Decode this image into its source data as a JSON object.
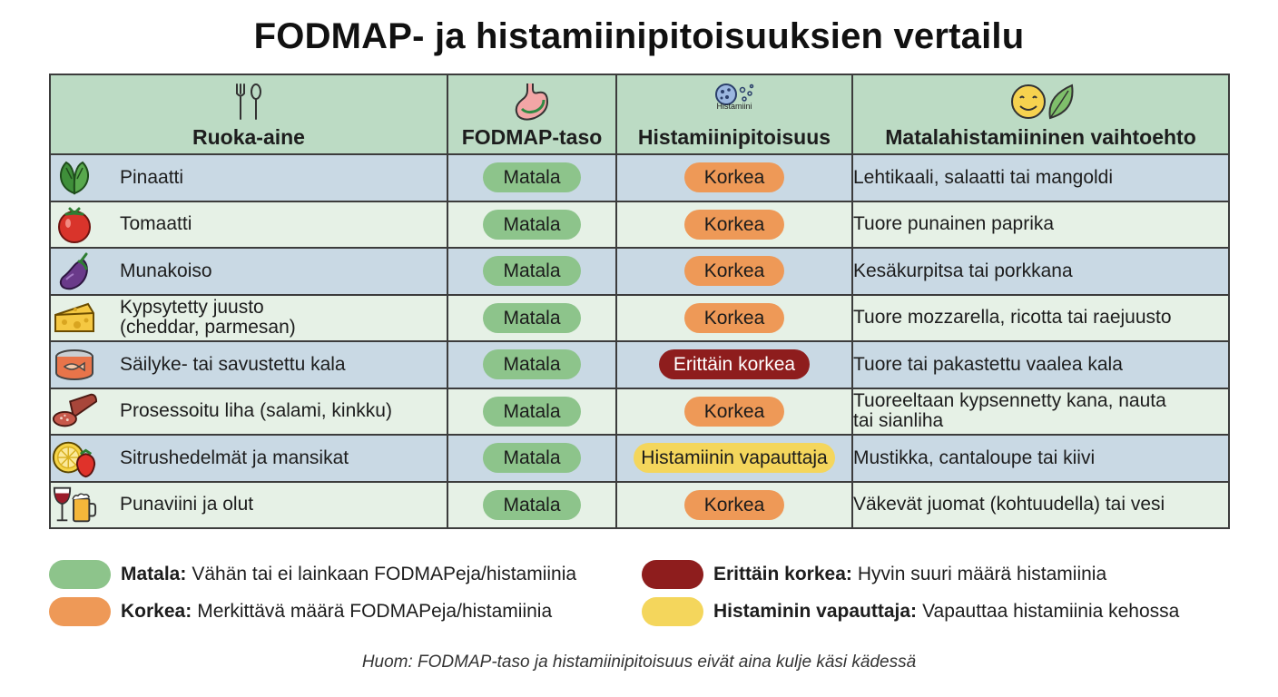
{
  "title": "FODMAP- ja histamiinipitoisuuksien vertailu",
  "headers": {
    "food": "Ruoka-aine",
    "fodmap": "FODMAP-taso",
    "histamine": "Histamiinipitoisuus",
    "histamine_icon_label": "Histamiini",
    "alternative": "Matalahistamiininen vaihtoehto"
  },
  "header_icons": [
    "fork-spoon-icon",
    "stomach-icon",
    "histamine-molecule-icon",
    "smiley-leaf-icon"
  ],
  "rows": [
    {
      "icon": "spinach-icon",
      "food": "Pinaatti",
      "food_line2": "",
      "fodmap": "Matala",
      "histamine": "Korkea",
      "histamine_level": "high",
      "alt": "Lehtikaali, salaatti tai mangoldi",
      "alt_line2": ""
    },
    {
      "icon": "tomato-icon",
      "food": "Tomaatti",
      "food_line2": "",
      "fodmap": "Matala",
      "histamine": "Korkea",
      "histamine_level": "high",
      "alt": "Tuore punainen paprika",
      "alt_line2": ""
    },
    {
      "icon": "eggplant-icon",
      "food": "Munakoiso",
      "food_line2": "",
      "fodmap": "Matala",
      "histamine": "Korkea",
      "histamine_level": "high",
      "alt": "Kesäkurpitsa tai porkkana",
      "alt_line2": ""
    },
    {
      "icon": "cheese-icon",
      "food": "Kypsytetty juusto",
      "food_line2": "(cheddar, parmesan)",
      "fodmap": "Matala",
      "histamine": "Korkea",
      "histamine_level": "high",
      "alt": "Tuore mozzarella, ricotta tai raejuusto",
      "alt_line2": ""
    },
    {
      "icon": "canned-fish-icon",
      "food": "Säilyke- tai savustettu kala",
      "food_line2": "",
      "fodmap": "Matala",
      "histamine": "Erittäin korkea",
      "histamine_level": "very-high",
      "alt": "Tuore tai pakastettu vaalea kala",
      "alt_line2": ""
    },
    {
      "icon": "salami-icon",
      "food": "Prosessoitu liha (salami, kinkku)",
      "food_line2": "",
      "fodmap": "Matala",
      "histamine": "Korkea",
      "histamine_level": "high",
      "alt": "Tuoreeltaan kypsennetty kana, nauta",
      "alt_line2": "tai sianliha"
    },
    {
      "icon": "citrus-strawberry-icon",
      "food": "Sitrushedelmät ja mansikat",
      "food_line2": "",
      "fodmap": "Matala",
      "histamine": "Histamiinin vapauttaja",
      "histamine_level": "liberator",
      "alt": "Mustikka, cantaloupe tai kiivi",
      "alt_line2": ""
    },
    {
      "icon": "wine-beer-icon",
      "food": "Punaviini ja olut",
      "food_line2": "",
      "fodmap": "Matala",
      "histamine": "Korkea",
      "histamine_level": "high",
      "alt": "Väkevät juomat (kohtuudella) tai vesi",
      "alt_line2": ""
    }
  ],
  "legend": [
    {
      "term": "Matala:",
      "desc": "Vähän tai ei lainkaan FODMAPeja/histamiinia",
      "color": "#8dc48b"
    },
    {
      "term": "Korkea:",
      "desc": "Merkittävä määrä FODMAPeja/histamiinia",
      "color": "#ee9957"
    },
    {
      "term": "Erittäin korkea:",
      "desc": "Hyvin suuri määrä histamiinia",
      "color": "#8e1d1d"
    },
    {
      "term": "Histaminin vapauttaja:",
      "desc": "Vapauttaa histamiinia kehossa",
      "color": "#f4d65c"
    }
  ],
  "note": "Huom: FODMAP-taso ja histamiinipitoisuus eivät aina kulje käsi kädessä",
  "colors": {
    "header_bg": "#bcdbc4",
    "row_blue": "#c9d9e4",
    "row_green": "#e6f1e6",
    "low": "#8dc48b",
    "high": "#ee9957",
    "very_high": "#8e1d1d",
    "liberator": "#f4d65c"
  }
}
